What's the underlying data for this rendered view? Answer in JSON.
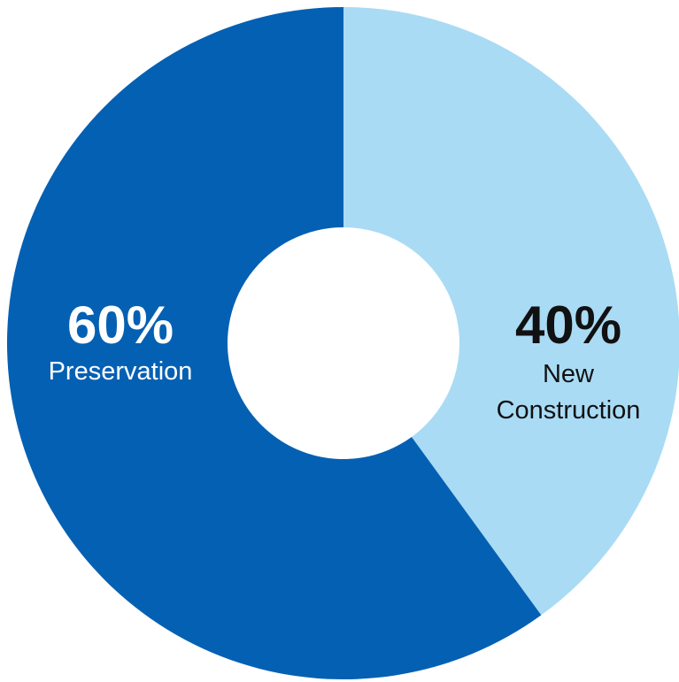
{
  "chart_data": {
    "type": "pie",
    "donut": true,
    "categories": [
      "New Construction",
      "Preservation"
    ],
    "values": [
      40,
      60
    ],
    "labels": [
      {
        "value": "40%",
        "name_lines": [
          "New",
          "Construction"
        ]
      },
      {
        "value": "60%",
        "name_lines": [
          "Preservation"
        ]
      }
    ],
    "colors": [
      "#a9dbf5",
      "#0460b3"
    ],
    "label_colors": [
      "#111111",
      "#ffffff"
    ],
    "start_angle": "12 o'clock",
    "direction": "clockwise",
    "legend": "none"
  }
}
